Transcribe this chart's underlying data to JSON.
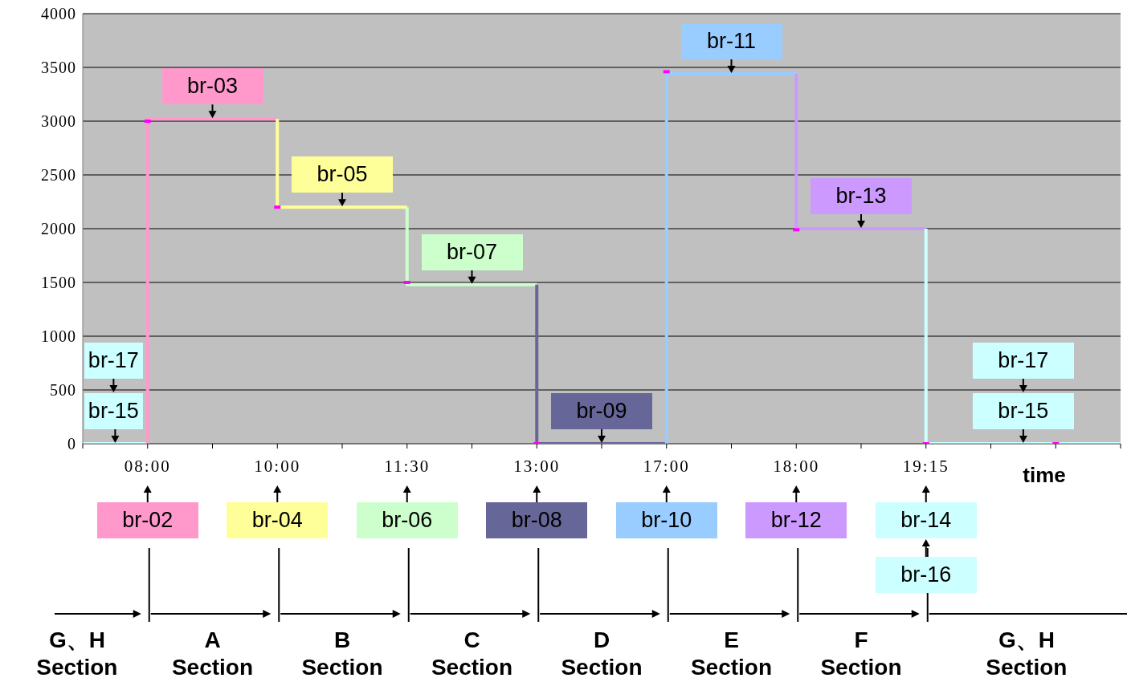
{
  "chart_data": {
    "type": "step",
    "xlabel": "time",
    "categories": [
      null,
      "08:00",
      null,
      "10:00",
      null,
      "11:30",
      null,
      "13:00",
      null,
      "17:00",
      null,
      "18:00",
      null,
      "19:15",
      null,
      null,
      null
    ],
    "ylim": [
      0,
      4000
    ],
    "yticks": [
      0,
      500,
      1000,
      1500,
      2000,
      2500,
      3000,
      3500,
      4000
    ],
    "grid": "y",
    "series": [
      {
        "color": "#ccffff",
        "values": [
          0,
          0,
          null,
          null,
          null,
          null,
          null,
          null,
          null,
          null,
          null,
          null,
          null,
          null,
          null,
          null,
          null
        ]
      },
      {
        "color": "#ff99cc",
        "values": [
          null,
          0,
          3020,
          3020,
          null,
          null,
          null,
          null,
          null,
          null,
          null,
          null,
          null,
          null,
          null,
          null,
          null
        ]
      },
      {
        "color": "#ffff99",
        "values": [
          null,
          null,
          null,
          3020,
          2200,
          2200,
          null,
          null,
          null,
          null,
          null,
          null,
          null,
          null,
          null,
          null,
          null
        ]
      },
      {
        "color": "#ccffcc",
        "values": [
          null,
          null,
          null,
          null,
          null,
          2200,
          1480,
          1480,
          null,
          null,
          null,
          null,
          null,
          null,
          null,
          null,
          null
        ]
      },
      {
        "color": "#666699",
        "values": [
          null,
          null,
          null,
          null,
          null,
          null,
          null,
          1480,
          0,
          0,
          null,
          null,
          null,
          null,
          null,
          null,
          null
        ]
      },
      {
        "color": "#99ccff",
        "values": [
          null,
          null,
          null,
          null,
          null,
          null,
          null,
          null,
          null,
          0,
          3440,
          3440,
          null,
          null,
          null,
          null,
          null
        ]
      },
      {
        "color": "#cc99ff",
        "values": [
          null,
          null,
          null,
          null,
          null,
          null,
          null,
          null,
          null,
          null,
          null,
          3440,
          2000,
          2000,
          null,
          null,
          null
        ]
      },
      {
        "color": "#ccffff",
        "values": [
          null,
          null,
          null,
          null,
          null,
          null,
          null,
          null,
          null,
          null,
          null,
          null,
          null,
          2000,
          0,
          0,
          0
        ]
      },
      {
        "type": "scatter",
        "marker": "square",
        "color": "#ff00ff",
        "values": [
          null,
          3000,
          null,
          2200,
          null,
          1500,
          null,
          0,
          null,
          3460,
          null,
          1990,
          null,
          0,
          null,
          0,
          null
        ]
      }
    ],
    "annotations": [
      "br-02",
      "br-04",
      "br-06",
      "br-08",
      "br-10",
      "br-12",
      "br-14",
      "br-16",
      {
        "text": "br-15",
        "y": 0
      },
      "br-17",
      {
        "text": "br-03",
        "y": 3020
      },
      {
        "text": "br-05",
        "y": 2200
      },
      {
        "text": "br-07",
        "y": 1480
      },
      {
        "text": "br-09",
        "y": 0
      },
      {
        "text": "br-11",
        "y": 3440
      },
      {
        "text": "br-13",
        "y": 2000
      },
      {
        "text": "br-15",
        "y": 0
      },
      "br-17",
      "G、H\nSection",
      "A\nSection",
      "B\nSection",
      "C\nSection",
      "D\nSection",
      "E\nSection",
      "F\nSection",
      "G、H\nSection"
    ]
  }
}
